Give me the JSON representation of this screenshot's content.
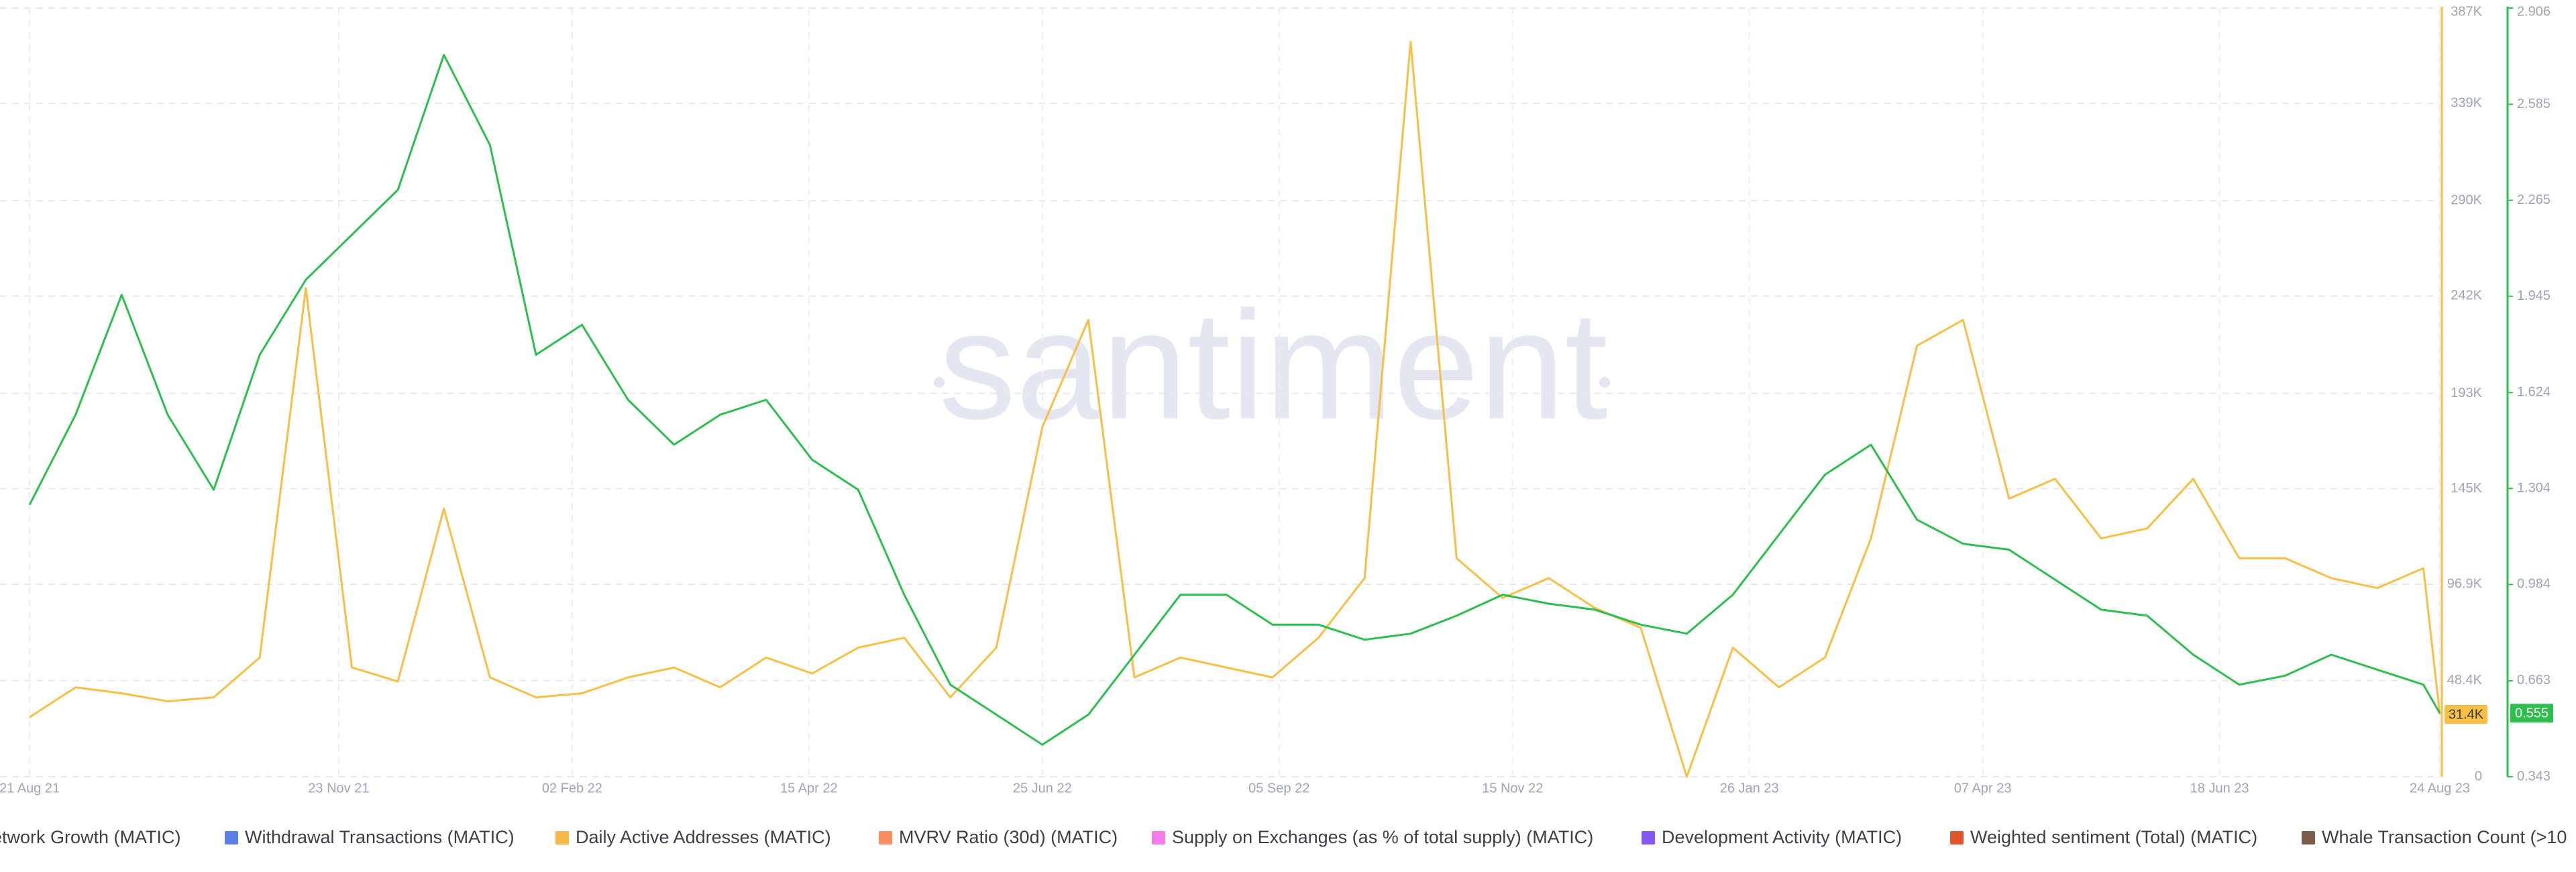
{
  "chart_data": {
    "type": "line",
    "watermark": "santiment",
    "grid": true,
    "x": [
      "2021-08-21",
      "2021-09-04",
      "2021-09-18",
      "2021-10-02",
      "2021-10-16",
      "2021-10-30",
      "2021-11-13",
      "2021-11-27",
      "2021-12-11",
      "2021-12-25",
      "2022-01-08",
      "2022-01-22",
      "2022-02-05",
      "2022-02-19",
      "2022-03-05",
      "2022-03-19",
      "2022-04-02",
      "2022-04-16",
      "2022-04-30",
      "2022-05-14",
      "2022-05-28",
      "2022-06-11",
      "2022-06-25",
      "2022-07-09",
      "2022-07-23",
      "2022-08-06",
      "2022-08-20",
      "2022-09-03",
      "2022-09-17",
      "2022-10-01",
      "2022-10-15",
      "2022-10-29",
      "2022-11-12",
      "2022-11-26",
      "2022-12-10",
      "2022-12-24",
      "2023-01-07",
      "2023-01-21",
      "2023-02-04",
      "2023-02-18",
      "2023-03-04",
      "2023-03-18",
      "2023-04-01",
      "2023-04-15",
      "2023-04-29",
      "2023-05-13",
      "2023-05-27",
      "2023-06-10",
      "2023-06-24",
      "2023-07-08",
      "2023-07-22",
      "2023-08-05",
      "2023-08-19",
      "2023-08-24"
    ],
    "xlim": [
      "2021-08-12",
      "2023-08-24"
    ],
    "xticks": [
      {
        "value": "2021-08-21",
        "label": "21 Aug 21"
      },
      {
        "value": "2021-11-23",
        "label": "23 Nov 21"
      },
      {
        "value": "2022-02-02",
        "label": "02 Feb 22"
      },
      {
        "value": "2022-04-15",
        "label": "15 Apr 22"
      },
      {
        "value": "2022-06-25",
        "label": "25 Jun 22"
      },
      {
        "value": "2022-09-05",
        "label": "05 Sep 22"
      },
      {
        "value": "2022-11-15",
        "label": "15 Nov 22"
      },
      {
        "value": "2023-01-26",
        "label": "26 Jan 23"
      },
      {
        "value": "2023-04-07",
        "label": "07 Apr 23"
      },
      {
        "value": "2023-06-18",
        "label": "18 Jun 23"
      },
      {
        "value": "2023-08-24",
        "label": "24 Aug 23"
      }
    ],
    "ylim": [
      0,
      387000
    ],
    "yticks": [
      0,
      {
        "value": 48400,
        "label": "48.4K"
      },
      {
        "value": 96900,
        "label": "96.9K"
      },
      {
        "value": 145000,
        "label": "145K"
      },
      {
        "value": 193000,
        "label": "193K"
      },
      {
        "value": 242000,
        "label": "242K"
      },
      {
        "value": 290000,
        "label": "290K"
      },
      {
        "value": 339000,
        "label": "339K"
      },
      {
        "value": 387000,
        "label": "387K"
      }
    ],
    "y2lim": [
      0.343,
      2.906
    ],
    "y2ticks": [
      0.343,
      0.663,
      0.984,
      1.304,
      1.624,
      1.945,
      2.265,
      2.585,
      2.906
    ],
    "series": [
      {
        "color": "#f7bf45",
        "values": [
          30000,
          45000,
          42000,
          38000,
          40000,
          60000,
          246000,
          55000,
          48000,
          135000,
          50000,
          40000,
          42000,
          50000,
          55000,
          45000,
          60000,
          52000,
          65000,
          70000,
          40000,
          65000,
          176000,
          230000,
          50000,
          60000,
          55000,
          50000,
          70000,
          100000,
          370000,
          110000,
          90000,
          100000,
          85000,
          75000,
          0,
          65000,
          45000,
          60000,
          120000,
          217000,
          230000,
          140000,
          150000,
          120000,
          125000,
          150000,
          110000,
          110000,
          100000,
          95000,
          105000,
          31400
        ],
        "current_label": "31.4K"
      },
      {
        "color": "#2dbf4e",
        "axis": "y2",
        "values": [
          1.25,
          1.55,
          1.95,
          1.55,
          1.3,
          1.75,
          2.0,
          2.15,
          2.3,
          2.75,
          2.45,
          1.75,
          1.85,
          1.6,
          1.45,
          1.55,
          1.6,
          1.4,
          1.3,
          0.95,
          0.65,
          0.55,
          0.45,
          0.55,
          0.75,
          0.95,
          0.95,
          0.85,
          0.85,
          0.8,
          0.82,
          0.88,
          0.95,
          0.92,
          0.9,
          0.85,
          0.82,
          0.95,
          1.15,
          1.35,
          1.45,
          1.2,
          1.12,
          1.1,
          1.0,
          0.9,
          0.88,
          0.75,
          0.65,
          0.68,
          0.75,
          0.7,
          0.65,
          0.555
        ],
        "current_label": "0.555"
      }
    ],
    "legend": [
      {
        "name": "etwork Growth (MATIC)"
      },
      {
        "name": "Withdrawal Transactions (MATIC)",
        "color": "#5b7fe6"
      },
      {
        "name": "Daily Active Addresses (MATIC)",
        "color": "#f7b84b"
      },
      {
        "name": "MVRV Ratio (30d) (MATIC)",
        "color": "#f98e5e"
      },
      {
        "name": "Supply on Exchanges (as % of total supply) (MATIC)",
        "color": "#f47ce5"
      },
      {
        "name": "Development Activity (MATIC)",
        "color": "#8458f0"
      },
      {
        "name": "Weighted sentiment (Total) (MATIC)",
        "color": "#e0552b"
      },
      {
        "name": "Whale Transaction Count (>10",
        "color": "#7b5b49"
      }
    ]
  }
}
